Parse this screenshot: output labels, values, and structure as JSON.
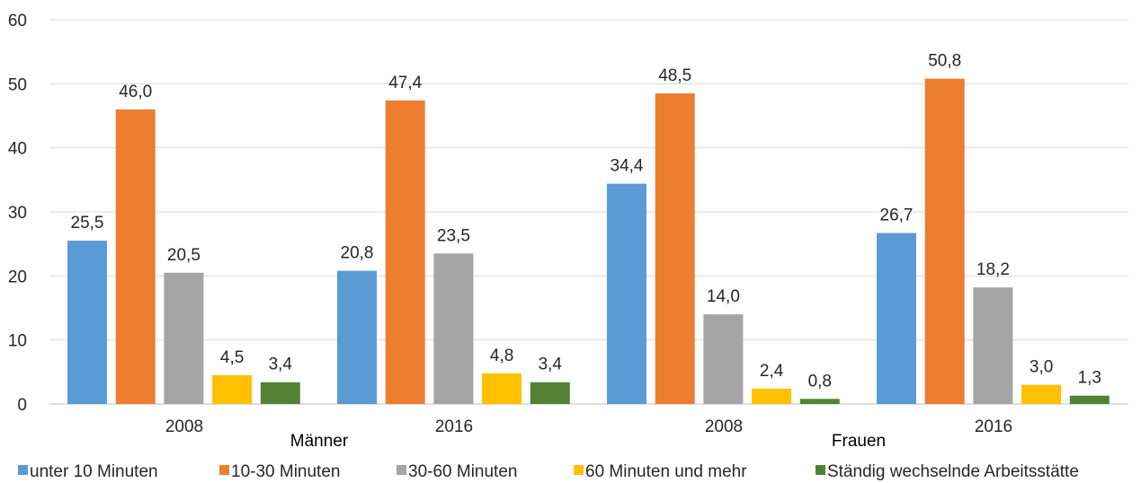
{
  "chart_data": {
    "type": "bar",
    "title": "",
    "xlabel": "",
    "ylabel": "",
    "ylim": [
      0,
      60
    ],
    "yticks": [
      0,
      10,
      20,
      30,
      40,
      50,
      60
    ],
    "grid": true,
    "legend_position": "bottom",
    "categories": [
      "2008",
      "2016",
      "2008",
      "2016"
    ],
    "groups": [
      {
        "label": "Männer",
        "categories": [
          "2008",
          "2016"
        ]
      },
      {
        "label": "Frauen",
        "categories": [
          "2008",
          "2016"
        ]
      }
    ],
    "series": [
      {
        "name": "unter 10 Minuten",
        "color": "#5B9BD5",
        "values": [
          25.5,
          20.8,
          34.4,
          26.7
        ],
        "labels": [
          "25,5",
          "20,8",
          "34,4",
          "26,7"
        ]
      },
      {
        "name": "10-30 Minuten",
        "color": "#ED7D31",
        "values": [
          46.0,
          47.4,
          48.5,
          50.8
        ],
        "labels": [
          "46,0",
          "47,4",
          "48,5",
          "50,8"
        ]
      },
      {
        "name": "30-60 Minuten",
        "color": "#A5A5A5",
        "values": [
          20.5,
          23.5,
          14.0,
          18.2
        ],
        "labels": [
          "20,5",
          "23,5",
          "14,0",
          "18,2"
        ]
      },
      {
        "name": "60 Minuten und mehr",
        "color": "#FFC000",
        "values": [
          4.5,
          4.8,
          2.4,
          3.0
        ],
        "labels": [
          "4,5",
          "4,8",
          "2,4",
          "3,0"
        ]
      },
      {
        "name": "Ständig wechselnde Arbeitsstätte",
        "color": "#548235",
        "values": [
          3.4,
          3.4,
          0.8,
          1.3
        ],
        "labels": [
          "3,4",
          "3,4",
          "0,8",
          "1,3"
        ]
      }
    ]
  }
}
